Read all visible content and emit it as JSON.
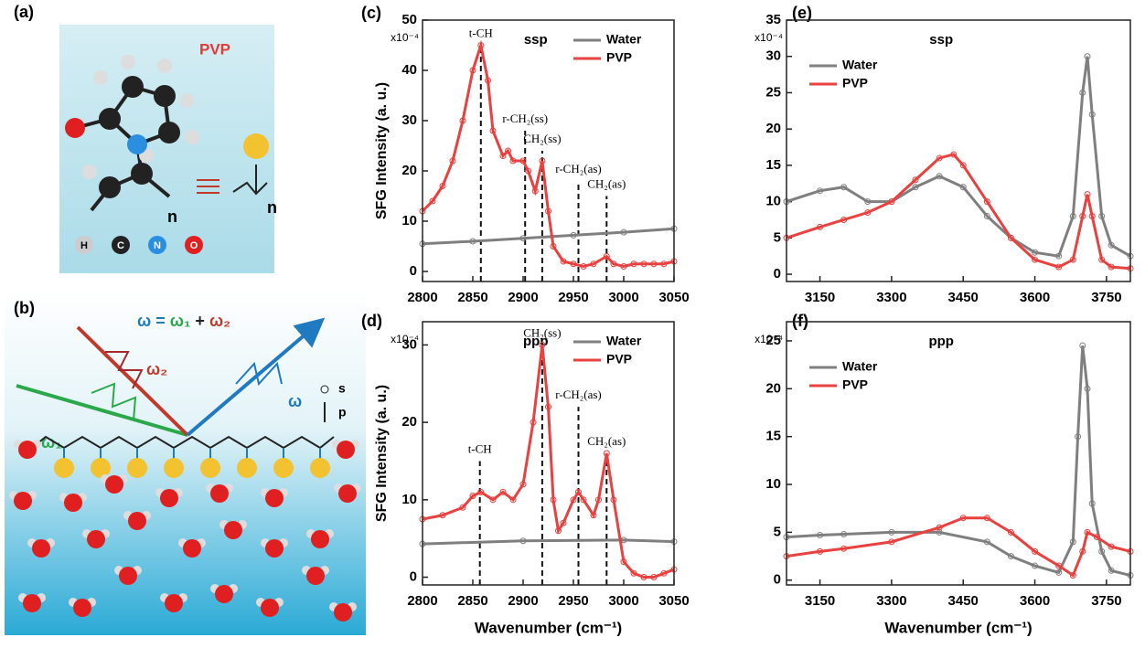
{
  "diagrams": {
    "a": {
      "label": "(a)",
      "title": "PVP",
      "repeat": "n",
      "repeat_right": "n",
      "atoms": [
        "H",
        "C",
        "N",
        "O"
      ]
    },
    "b": {
      "label": "(b)",
      "eq_lhs": "ω =",
      "eq_w1": "ω₁",
      "eq_plus": "+",
      "eq_w2": "ω₂",
      "beam_w1": "ω₁",
      "beam_w2": "ω₂",
      "beam_w": "ω",
      "pol_s": "s",
      "pol_p": "p"
    }
  },
  "chart_data": [
    {
      "type": "line",
      "panel_label": "(c)",
      "title": "ssp",
      "y_unit": "x10⁻⁴",
      "ylabel": "SFG Intensity (a. u.)",
      "xlim": [
        2800,
        3050
      ],
      "xticks": [
        2800,
        2850,
        2900,
        2950,
        3000,
        3050
      ],
      "ylim": [
        -2,
        50
      ],
      "yticks": [
        0,
        10,
        20,
        30,
        40,
        50
      ],
      "legend": "upper right",
      "series": [
        {
          "name": "Water",
          "color": "#7f7f7f",
          "x": [
            2800,
            2850,
            2900,
            2950,
            3000,
            3050
          ],
          "values": [
            5.5,
            6,
            6.6,
            7.2,
            7.8,
            8.5
          ]
        },
        {
          "name": "PVP",
          "color": "#e8413f",
          "x": [
            2800,
            2810,
            2820,
            2830,
            2840,
            2850,
            2858,
            2865,
            2870,
            2880,
            2885,
            2890,
            2900,
            2905,
            2912,
            2919,
            2925,
            2930,
            2940,
            2950,
            2960,
            2970,
            2983,
            2990,
            3000,
            3010,
            3020,
            3030,
            3040,
            3050
          ],
          "values": [
            12,
            14,
            17,
            22,
            30,
            40,
            45,
            38,
            28,
            23,
            24,
            22,
            22,
            20,
            16,
            22,
            12,
            5,
            2,
            1.5,
            1,
            1.5,
            3,
            1.5,
            1,
            1.5,
            1.5,
            1.5,
            1.5,
            2
          ]
        }
      ],
      "annotations": [
        {
          "text": "t-CH",
          "x": 2858,
          "y": 45
        },
        {
          "text": "r-CH₂(ss)",
          "x": 2902,
          "y": 28
        },
        {
          "text": "CH₂(ss)",
          "x": 2919,
          "y": 24
        },
        {
          "text": "r-CH₂(as)",
          "x": 2955,
          "y": 18
        },
        {
          "text": "CH₂(as)",
          "x": 2983,
          "y": 15
        }
      ]
    },
    {
      "type": "line",
      "panel_label": "(d)",
      "title": "ppp",
      "y_unit": "x10⁻⁴",
      "ylabel": "SFG Intensity (a. u.)",
      "xlabel": "Wavenumber (cm⁻¹)",
      "xlim": [
        2800,
        3050
      ],
      "xticks": [
        2800,
        2850,
        2900,
        2950,
        3000,
        3050
      ],
      "ylim": [
        -1,
        33
      ],
      "yticks": [
        0,
        10,
        20,
        30
      ],
      "legend": "upper right",
      "series": [
        {
          "name": "Water",
          "color": "#7f7f7f",
          "x": [
            2800,
            2900,
            3000,
            3050
          ],
          "values": [
            4.3,
            4.7,
            4.8,
            4.6
          ]
        },
        {
          "name": "PVP",
          "color": "#e8413f",
          "x": [
            2800,
            2820,
            2840,
            2850,
            2858,
            2870,
            2880,
            2890,
            2900,
            2910,
            2919,
            2925,
            2930,
            2935,
            2940,
            2950,
            2955,
            2960,
            2970,
            2975,
            2983,
            2990,
            3000,
            3010,
            3020,
            3030,
            3040,
            3050
          ],
          "values": [
            7.5,
            8,
            9,
            10.5,
            11,
            10,
            11,
            10,
            12,
            20,
            30,
            22,
            10,
            6,
            7,
            10,
            11,
            10,
            8,
            10,
            16,
            10,
            2,
            0.5,
            0,
            0,
            0.5,
            1
          ]
        }
      ],
      "annotations": [
        {
          "text": "t-CH",
          "x": 2857,
          "y": 15
        },
        {
          "text": "CH₂(ss)",
          "x": 2919,
          "y": 30
        },
        {
          "text": "r-CH₂(as)",
          "x": 2955,
          "y": 22
        },
        {
          "text": "CH₂(as)",
          "x": 2983,
          "y": 16
        }
      ]
    },
    {
      "type": "line",
      "panel_label": "(e)",
      "title": "ssp",
      "y_unit": "x10⁻⁴",
      "xlim": [
        3080,
        3800
      ],
      "xticks": [
        3150,
        3300,
        3450,
        3600,
        3750
      ],
      "ylim": [
        -1,
        35
      ],
      "yticks": [
        0,
        5,
        10,
        15,
        20,
        25,
        30,
        35
      ],
      "legend": "upper left",
      "series": [
        {
          "name": "Water",
          "color": "#7f7f7f",
          "x": [
            3080,
            3150,
            3200,
            3250,
            3300,
            3350,
            3400,
            3450,
            3500,
            3550,
            3600,
            3650,
            3680,
            3700,
            3710,
            3720,
            3740,
            3760,
            3800
          ],
          "values": [
            10,
            11.5,
            12,
            10,
            10,
            12,
            13.5,
            12,
            8,
            5,
            3,
            2.5,
            8,
            25,
            30,
            22,
            8,
            4,
            2.5
          ]
        },
        {
          "name": "PVP",
          "color": "#e8413f",
          "x": [
            3080,
            3150,
            3200,
            3250,
            3300,
            3350,
            3400,
            3430,
            3450,
            3500,
            3550,
            3600,
            3650,
            3680,
            3700,
            3710,
            3720,
            3740,
            3760,
            3800
          ],
          "values": [
            5,
            6.5,
            7.5,
            8.5,
            10,
            13,
            16,
            16.5,
            15,
            10,
            5,
            2,
            1,
            2,
            8,
            11,
            8,
            2,
            1,
            0.8
          ]
        }
      ]
    },
    {
      "type": "line",
      "panel_label": "(f)",
      "title": "ppp",
      "y_unit": "x10⁻⁴",
      "xlabel": "Wavenumber (cm⁻¹)",
      "xlim": [
        3080,
        3800
      ],
      "xticks": [
        3150,
        3300,
        3450,
        3600,
        3750
      ],
      "ylim": [
        -0.5,
        27
      ],
      "yticks": [
        0,
        5,
        10,
        15,
        20,
        25
      ],
      "legend": "upper left",
      "series": [
        {
          "name": "Water",
          "color": "#7f7f7f",
          "x": [
            3080,
            3150,
            3200,
            3300,
            3400,
            3500,
            3550,
            3600,
            3650,
            3680,
            3690,
            3700,
            3710,
            3720,
            3740,
            3760,
            3800
          ],
          "values": [
            4.5,
            4.7,
            4.8,
            5,
            5,
            4,
            2.5,
            1.5,
            0.8,
            4,
            15,
            24.5,
            20,
            8,
            3,
            1,
            0.5
          ]
        },
        {
          "name": "PVP",
          "color": "#e8413f",
          "x": [
            3080,
            3150,
            3200,
            3300,
            3400,
            3450,
            3500,
            3550,
            3600,
            3650,
            3680,
            3700,
            3710,
            3730,
            3760,
            3800
          ],
          "values": [
            2.5,
            3,
            3.3,
            4,
            5.5,
            6.5,
            6.5,
            5,
            3,
            1.5,
            0.5,
            3,
            5,
            4.5,
            3.5,
            3
          ]
        }
      ]
    }
  ]
}
